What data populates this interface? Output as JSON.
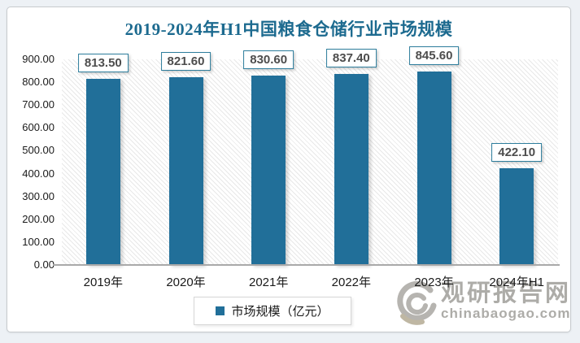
{
  "title": "2019-2024年H1中国粮食仓储行业市场规模",
  "colors": {
    "bar": "#216F99",
    "title": "#1C6A8F",
    "value_box_border": "#2D7D9C",
    "axis_line": "#A9A9A9",
    "watermark_text": "#A9A8A4",
    "page_background": "#EDF1F5",
    "panel_background": "#FFFFFF"
  },
  "chart_data": {
    "type": "bar",
    "title": "2019-2024年H1中国粮食仓储行业市场规模",
    "categories": [
      "2019年",
      "2020年",
      "2021年",
      "2022年",
      "2023年",
      "2024年H1"
    ],
    "values": [
      813.5,
      821.6,
      830.6,
      837.4,
      845.6,
      422.1
    ],
    "value_labels": [
      "813.50",
      "821.60",
      "830.60",
      "837.40",
      "845.60",
      "422.10"
    ],
    "series_name": "市场规模（亿元）",
    "legend": [
      "市场规模（亿元）"
    ],
    "legend_position": "bottom",
    "xlabel": "",
    "ylabel": "",
    "ylim": [
      0,
      900
    ],
    "yticks": [
      "900.00",
      "800.00",
      "700.00",
      "600.00",
      "500.00",
      "400.00",
      "300.00",
      "200.00",
      "100.00",
      "0.00"
    ],
    "grid": false,
    "plot_background": "diagonal-hatch"
  },
  "watermark": {
    "site_name": "观研报告网",
    "site_url": "chinabaogao.com"
  }
}
